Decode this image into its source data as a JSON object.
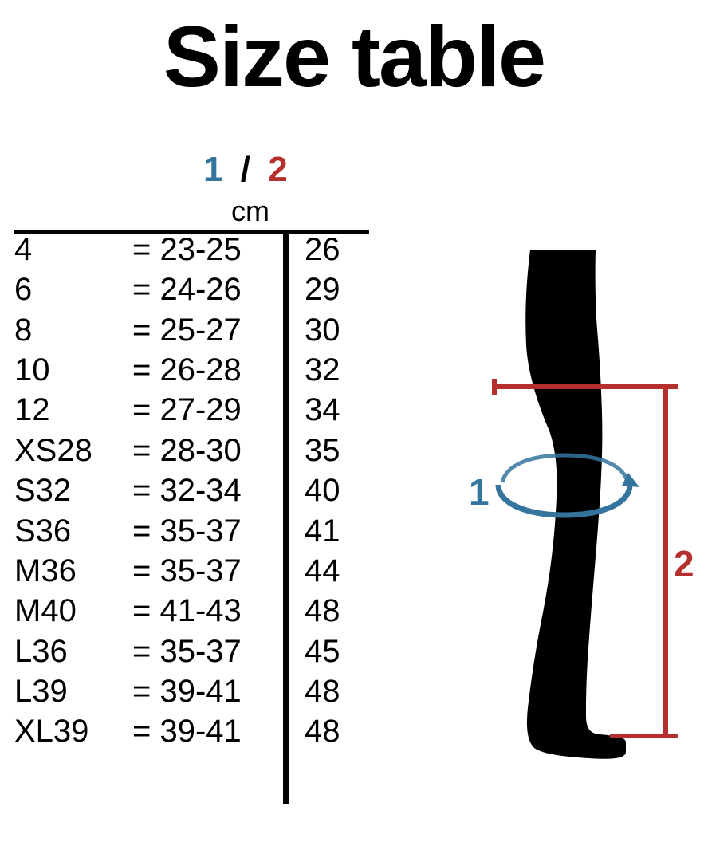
{
  "title": "Size table",
  "header": {
    "label1": "1",
    "slash": "/",
    "label2": "2",
    "unit": "cm"
  },
  "colors": {
    "accent1": "#34749d",
    "accent2": "#b42f2d",
    "text": "#000000",
    "background": "#ffffff"
  },
  "rows": [
    {
      "size": "4",
      "range": "= 23-25",
      "val2": "26"
    },
    {
      "size": "6",
      "range": "= 24-26",
      "val2": "29"
    },
    {
      "size": "8",
      "range": "= 25-27",
      "val2": "30"
    },
    {
      "size": "10",
      "range": "= 26-28",
      "val2": "32"
    },
    {
      "size": "12",
      "range": "= 27-29",
      "val2": "34"
    },
    {
      "size": "XS28",
      "range": "= 28-30",
      "val2": "35"
    },
    {
      "size": "S32",
      "range": "= 32-34",
      "val2": "40"
    },
    {
      "size": "S36",
      "range": "= 35-37",
      "val2": "41"
    },
    {
      "size": "M36",
      "range": "= 35-37",
      "val2": "44"
    },
    {
      "size": "M40",
      "range": "= 41-43",
      "val2": "48"
    },
    {
      "size": "L36",
      "range": "= 35-37",
      "val2": "45"
    },
    {
      "size": "L39",
      "range": "= 39-41",
      "val2": "48"
    },
    {
      "size": "XL39",
      "range": "= 39-41",
      "val2": "48"
    }
  ],
  "diagram": {
    "label1": "1",
    "label2": "2",
    "ellipse_color": "#34749d",
    "top_line_color": "#b42f2d",
    "vert_line_color": "#b42f2d",
    "leg_fill": "#000000"
  }
}
